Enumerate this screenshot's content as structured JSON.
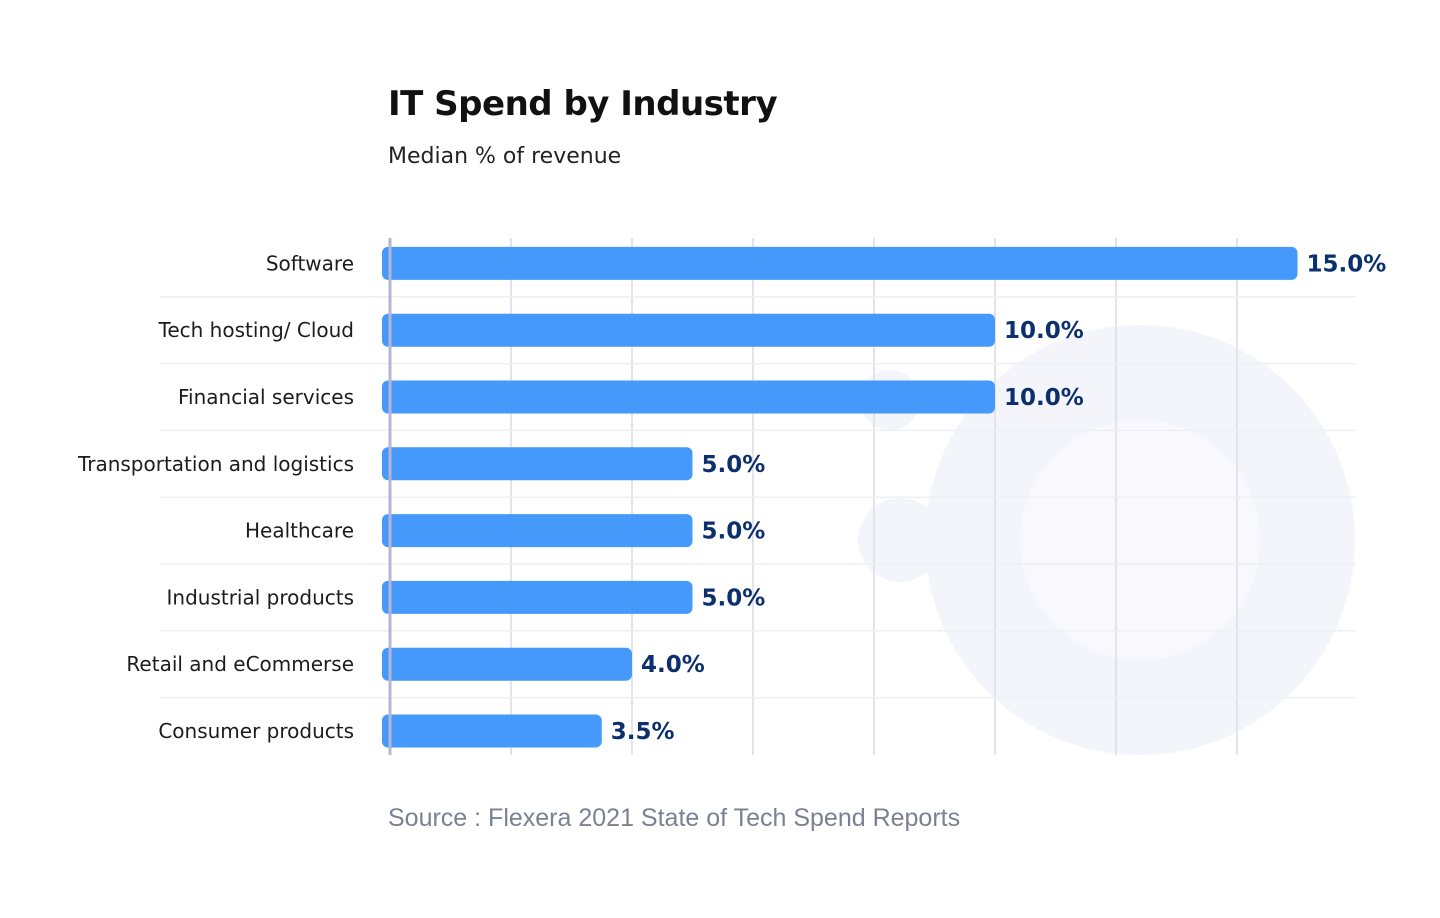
{
  "chart_data": {
    "type": "bar",
    "orientation": "horizontal",
    "title": "IT Spend by Industry",
    "subtitle": "Median % of revenue",
    "source": "Source : Flexera 2021 State of Tech Spend Reports",
    "categories": [
      "Software",
      "Tech hosting/ Cloud",
      "Financial services",
      "Transportation and logistics",
      "Healthcare",
      "Industrial products",
      "Retail and eCommerse",
      "Consumer products"
    ],
    "values": [
      15.0,
      10.0,
      10.0,
      5.0,
      5.0,
      5.0,
      4.0,
      3.5
    ],
    "value_labels": [
      "15.0%",
      "10.0%",
      "10.0%",
      "5.0%",
      "5.0%",
      "5.0%",
      "4.0%",
      "3.5%"
    ],
    "xlim": [
      0,
      16
    ],
    "xlabel": "",
    "ylabel": "",
    "grid": true,
    "legend": "none",
    "colors": {
      "bar": "#4499fb",
      "value_label": "#0c2f6e",
      "grid": "#e4e2ef",
      "axis": "#b7b5d6"
    }
  }
}
